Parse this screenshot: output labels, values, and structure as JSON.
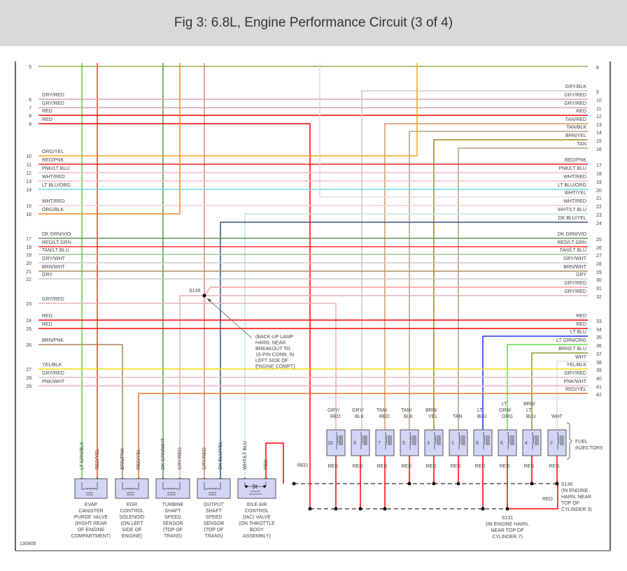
{
  "title": "Fig 3: 6.8L, Engine Performance Circuit (3 of 4)",
  "figure_id": "130905",
  "wires": [
    {
      "id": "w5",
      "left_pin": "5",
      "right_pin": "8",
      "label": "",
      "color": "#8db04a"
    },
    {
      "id": "w6",
      "left_pin": "6",
      "right_pin": "10",
      "label": "GRY/RED",
      "color": "#dca4a4"
    },
    {
      "id": "w7",
      "left_pin": "7",
      "right_pin": "11",
      "label": "GRY/RED",
      "color": "#dca4a4"
    },
    {
      "id": "w8",
      "left_pin": "8",
      "right_pin": "12",
      "label": "RED",
      "color": "#ff0000"
    },
    {
      "id": "w9",
      "left_pin": "9",
      "right_pin": "",
      "label": "RED",
      "color": "#ff0000"
    },
    {
      "id": "r9",
      "left_pin": "",
      "right_pin": "9",
      "label": "GRY/BLK",
      "color": "#cccccc"
    },
    {
      "id": "r13",
      "left_pin": "",
      "right_pin": "13",
      "label": "TAN/RED",
      "color": "#d4956a"
    },
    {
      "id": "r14",
      "left_pin": "",
      "right_pin": "14",
      "label": "TAN/BLK",
      "color": "#b0a080"
    },
    {
      "id": "r15",
      "left_pin": "",
      "right_pin": "15",
      "label": "BRN/YEL",
      "color": "#9a8a20"
    },
    {
      "id": "r16",
      "left_pin": "",
      "right_pin": "16",
      "label": "TAN",
      "color": "#b8a070"
    },
    {
      "id": "l10",
      "left_pin": "10",
      "right_pin": "",
      "label": "ORG/YEL",
      "color": "#f5a623"
    },
    {
      "id": "w11",
      "left_pin": "11",
      "right_pin": "17",
      "label": "RED/PNK",
      "color": "#ff2020"
    },
    {
      "id": "w12",
      "left_pin": "12",
      "right_pin": "18",
      "label": "PNK/LT BLU",
      "color": "#f5b8c8"
    },
    {
      "id": "w13",
      "left_pin": "13",
      "right_pin": "19",
      "label": "WHT/RED",
      "color": "#f0c0c0"
    },
    {
      "id": "w14",
      "left_pin": "14",
      "right_pin": "20",
      "label": "LT BLU/ORG",
      "color": "#5ee0e0"
    },
    {
      "id": "r21",
      "left_pin": "",
      "right_pin": "21",
      "label": "WHT/YEL",
      "color": "#dddddd"
    },
    {
      "id": "w15",
      "left_pin": "15",
      "right_pin": "22",
      "label": "WHT/RED",
      "color": "#f0d0d0"
    },
    {
      "id": "l16",
      "left_pin": "16",
      "right_pin": "",
      "label": "ORG/BLK",
      "color": "#f08a20"
    },
    {
      "id": "r23",
      "left_pin": "",
      "right_pin": "23",
      "label": "WHT/LT BLU",
      "color": "#b8ecec"
    },
    {
      "id": "r24",
      "left_pin": "",
      "right_pin": "24",
      "label": "DK BLU/YEL",
      "color": "#3a4f8f"
    },
    {
      "id": "w17",
      "left_pin": "17",
      "right_pin": "25",
      "label": "DK GRN/VIO",
      "color": "#5a9a50"
    },
    {
      "id": "w18",
      "left_pin": "18",
      "right_pin": "26",
      "label": "RED/LT GRN",
      "color": "#ee3030"
    },
    {
      "id": "w19",
      "left_pin": "19",
      "right_pin": "27",
      "label": "TAN/LT BLU",
      "color": "#a0c0a0"
    },
    {
      "id": "w20",
      "left_pin": "20",
      "right_pin": "28",
      "label": "GRY/WHT",
      "color": "#cccccc"
    },
    {
      "id": "w21",
      "left_pin": "21",
      "right_pin": "29",
      "label": "BRN/WHT",
      "color": "#a89060"
    },
    {
      "id": "w22",
      "left_pin": "22",
      "right_pin": "30",
      "label": "GRY",
      "color": "#c8c8c8"
    },
    {
      "id": "r31",
      "left_pin": "",
      "right_pin": "31",
      "label": "GRY/RED",
      "color": "#f0a0a0"
    },
    {
      "id": "r32",
      "left_pin": "",
      "right_pin": "32",
      "label": "GRY/RED",
      "color": "#e8b0b0"
    },
    {
      "id": "l23",
      "left_pin": "23",
      "right_pin": "",
      "label": "GRY/RED",
      "color": "#e8b0b0"
    },
    {
      "id": "w24",
      "left_pin": "24",
      "right_pin": "33",
      "label": "RED",
      "color": "#ff0000"
    },
    {
      "id": "w25",
      "left_pin": "25",
      "right_pin": "34",
      "label": "RED",
      "color": "#ff0000"
    },
    {
      "id": "r35",
      "left_pin": "",
      "right_pin": "35",
      "label": "LT BLU",
      "color": "#1a2ef0"
    },
    {
      "id": "r36",
      "left_pin": "",
      "right_pin": "36",
      "label": "LT GRN/ORG",
      "color": "#66dd44"
    },
    {
      "id": "l26",
      "left_pin": "26",
      "right_pin": "",
      "label": "BRN/PNK",
      "color": "#b08050"
    },
    {
      "id": "r37",
      "left_pin": "",
      "right_pin": "37",
      "label": "BRN/LT BLU",
      "color": "#8a9a30"
    },
    {
      "id": "r38",
      "left_pin": "",
      "right_pin": "38",
      "label": "WHT",
      "color": "#dddddd"
    },
    {
      "id": "w27",
      "left_pin": "27",
      "right_pin": "39",
      "label": "YEL/BLK",
      "color": "#f0e000"
    },
    {
      "id": "w28",
      "left_pin": "28",
      "right_pin": "40",
      "label": "GRY/RED",
      "color": "#e0c0c0"
    },
    {
      "id": "w29",
      "left_pin": "29",
      "right_pin": "41",
      "label": "PNK/WHT",
      "color": "#f5b0c0"
    },
    {
      "id": "r42",
      "left_pin": "",
      "right_pin": "42",
      "label": "RED/YEL",
      "color": "#f07020"
    }
  ],
  "sensor_wire_colors": {
    "lt_grn_blk": "#66cc44",
    "red_yel": "#ee4020",
    "dk_grn_wht": "#5a9a50",
    "gry_red": "#f08080",
    "red": "#ff0000"
  },
  "sensors": [
    {
      "pins": [
        "LT GRN/BLK",
        "RED/YEL"
      ],
      "name": [
        "EVAP",
        "CANISTER",
        "PURGE VALVE",
        "(RIGHT REAR",
        "OF ENGINE",
        "COMPARTMENT)"
      ]
    },
    {
      "pins": [
        "BRN/PNK",
        "RED/YEL"
      ],
      "name": [
        "EGR",
        "CONTROL",
        "SOLENOID",
        "(ON LEFT",
        "SIDE OF",
        "ENGINE)"
      ]
    },
    {
      "pins": [
        "DK GRN/WHT",
        "GRY/RED"
      ],
      "name": [
        "TURBINE",
        "SHAFT",
        "SPEED",
        "SENSOR",
        "(TOP OF",
        "TRANS)"
      ]
    },
    {
      "pins": [
        "GRY/RED",
        "DK BLU/YEL"
      ],
      "name": [
        "OUTPUT",
        "SHAFT",
        "SPEED",
        "SENSOR",
        "(TOP OF",
        "TRANS)"
      ]
    },
    {
      "pins": [
        "WHT/LT BLU",
        "RED"
      ],
      "name": [
        "IDLE AIR",
        "CONTROL",
        "(IAC) VALVE",
        "(ON THROTTLE",
        "BODY",
        "ASSEMBLY)"
      ]
    }
  ],
  "injectors": [
    {
      "number": "10",
      "wire": [
        "GRY/",
        "RED"
      ],
      "ground": "RED"
    },
    {
      "number": "9",
      "wire": [
        "GRY/",
        "BLK"
      ],
      "ground": "RED"
    },
    {
      "number": "7",
      "wire": [
        "TAN/",
        "RED"
      ],
      "ground": "RED"
    },
    {
      "number": "5",
      "wire": [
        "TAN/",
        "BLK"
      ],
      "ground": "RED"
    },
    {
      "number": "3",
      "wire": [
        "BRN/",
        "YEL"
      ],
      "ground": "RED"
    },
    {
      "number": "1",
      "wire": [
        "",
        "TAN"
      ],
      "ground": "RED"
    },
    {
      "number": "8",
      "wire": [
        "LT",
        "BLU"
      ],
      "ground": "RED"
    },
    {
      "number": "6",
      "wire": [
        "LT",
        "GRN/",
        "ORG"
      ],
      "ground": "RED"
    },
    {
      "number": "4",
      "wire": [
        "BRN/",
        "LT",
        "BLU"
      ],
      "ground": "RED"
    },
    {
      "number": "2",
      "wire": [
        "",
        "WHT"
      ],
      "ground": "RED"
    }
  ],
  "injector_group_label": [
    "FUEL",
    "INJECTORS"
  ],
  "iac_ground_label": "RED",
  "s136_ground_label": "RED",
  "splices": {
    "s139": "S139",
    "s139_note": [
      "(BACK-UP LAMP",
      "HARN, NEAR",
      "BREAKOUT TO",
      "16-PIN CONN. IN",
      "LEFT SIDE OF",
      "ENGINE COMPT)"
    ],
    "s136": [
      "S136",
      "(IN ENGINE",
      "HARN, NEAR",
      "TOP OF",
      "CYLINDER 3)"
    ],
    "s131": [
      "S131",
      "(IN ENGINE HARN,",
      "NEAR TOP OF",
      "CYLINDER 7)"
    ]
  }
}
